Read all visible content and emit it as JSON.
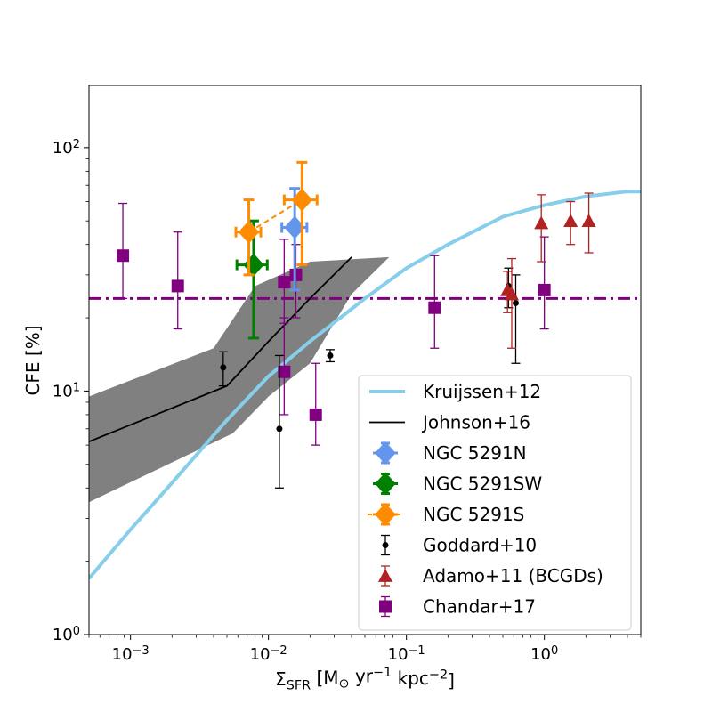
{
  "chart_data": {
    "type": "scatter",
    "xlabel": "Σ_SFR [M_⊙ yr^−1 kpc^−2]",
    "ylabel": "CFE [%]",
    "xscale": "log",
    "yscale": "log",
    "xlim": [
      0.0005,
      5
    ],
    "ylim": [
      1,
      180
    ],
    "xticks": [
      {
        "value": 0.001,
        "label": "10^−3"
      },
      {
        "value": 0.01,
        "label": "10^−2"
      },
      {
        "value": 0.1,
        "label": "10^−1"
      },
      {
        "value": 1,
        "label": "10^0"
      }
    ],
    "yticks": [
      {
        "value": 1,
        "label": "10^0"
      },
      {
        "value": 10,
        "label": "10^1"
      },
      {
        "value": 100,
        "label": "10^2"
      }
    ],
    "legend_position": "lower-right",
    "series": [
      {
        "name": "Kruijssen+12",
        "kind": "line",
        "color": "#87ceeb",
        "points": [
          [
            0.0005,
            1.7
          ],
          [
            0.001,
            2.7
          ],
          [
            0.002,
            4.2
          ],
          [
            0.005,
            7.6
          ],
          [
            0.01,
            11.5
          ],
          [
            0.02,
            16
          ],
          [
            0.05,
            24
          ],
          [
            0.1,
            32
          ],
          [
            0.2,
            40
          ],
          [
            0.5,
            52
          ],
          [
            1,
            58
          ],
          [
            2,
            63
          ],
          [
            4,
            66
          ],
          [
            5,
            66
          ]
        ]
      },
      {
        "name": "Johnson+16",
        "kind": "line",
        "color": "#000000",
        "points": [
          [
            0.0005,
            6.2
          ],
          [
            0.005,
            10.5
          ],
          [
            0.01,
            16
          ],
          [
            0.02,
            24
          ],
          [
            0.04,
            35.5
          ]
        ],
        "band": {
          "color": "#808080",
          "upper": [
            [
              0.0005,
              9.5
            ],
            [
              0.004,
              15
            ],
            [
              0.008,
              27
            ],
            [
              0.02,
              34
            ],
            [
              0.075,
              35.5
            ]
          ],
          "lower": [
            [
              0.075,
              35.5
            ],
            [
              0.04,
              25
            ],
            [
              0.02,
              13
            ],
            [
              0.01,
              9.5
            ],
            [
              0.0055,
              6.7
            ],
            [
              0.0005,
              3.5
            ]
          ]
        }
      },
      {
        "name": "NGC 5291N",
        "kind": "diamond",
        "color": "#6495ed",
        "points": [
          {
            "x": 0.0155,
            "y": 47,
            "xlo": 0.0125,
            "xhi": 0.019,
            "ylo": 26,
            "yhi": 68
          }
        ]
      },
      {
        "name": "NGC 5291SW",
        "kind": "diamond",
        "color": "#008000",
        "points": [
          {
            "x": 0.0078,
            "y": 33,
            "xlo": 0.0059,
            "xhi": 0.0098,
            "ylo": 16.5,
            "yhi": 50
          }
        ]
      },
      {
        "name": "NGC 5291S",
        "kind": "diamond",
        "color": "#ff8c00",
        "dashed_link": true,
        "points": [
          {
            "x": 0.0072,
            "y": 45,
            "xlo": 0.0058,
            "xhi": 0.0088,
            "ylo": 30,
            "yhi": 61
          },
          {
            "x": 0.0175,
            "y": 61,
            "xlo": 0.013,
            "xhi": 0.0225,
            "ylo": 33,
            "yhi": 87
          }
        ]
      },
      {
        "name": "Goddard+10",
        "kind": "dot",
        "color": "#000000",
        "points": [
          {
            "x": 0.0047,
            "y": 12.5,
            "ylo": 10.5,
            "yhi": 14.5
          },
          {
            "x": 0.012,
            "y": 7,
            "ylo": 4,
            "yhi": 14
          },
          {
            "x": 0.028,
            "y": 14,
            "ylo": 13.2,
            "yhi": 14.8
          },
          {
            "x": 0.55,
            "y": 27,
            "ylo": 22,
            "yhi": 32
          },
          {
            "x": 0.62,
            "y": 23,
            "ylo": 13,
            "yhi": 30
          }
        ]
      },
      {
        "name": "Adamo+11 (BCGDs)",
        "kind": "triangle",
        "color": "#b22222",
        "points": [
          {
            "x": 0.54,
            "y": 26,
            "ylo": 21,
            "yhi": 31
          },
          {
            "x": 0.58,
            "y": 25,
            "ylo": 15,
            "yhi": 35
          },
          {
            "x": 0.95,
            "y": 49,
            "ylo": 34,
            "yhi": 64
          },
          {
            "x": 1.55,
            "y": 50,
            "ylo": 40,
            "yhi": 60
          },
          {
            "x": 2.1,
            "y": 50,
            "ylo": 37,
            "yhi": 65
          }
        ]
      },
      {
        "name": "Chandar+17",
        "kind": "square",
        "color": "#800080",
        "hline": {
          "y": 24,
          "style": "dashdot"
        },
        "points": [
          {
            "x": 0.00088,
            "y": 36,
            "ylo": 24,
            "yhi": 59
          },
          {
            "x": 0.0022,
            "y": 27,
            "ylo": 18,
            "yhi": 45
          },
          {
            "x": 0.013,
            "y": 28,
            "ylo": 19,
            "yhi": 42
          },
          {
            "x": 0.013,
            "y": 12,
            "ylo": 8,
            "yhi": 20
          },
          {
            "x": 0.0158,
            "y": 30,
            "ylo": 20,
            "yhi": 40
          },
          {
            "x": 0.022,
            "y": 8,
            "ylo": 6,
            "yhi": 13
          },
          {
            "x": 0.16,
            "y": 22,
            "ylo": 15,
            "yhi": 36
          },
          {
            "x": 1,
            "y": 26,
            "ylo": 18,
            "yhi": 43
          }
        ]
      }
    ]
  }
}
